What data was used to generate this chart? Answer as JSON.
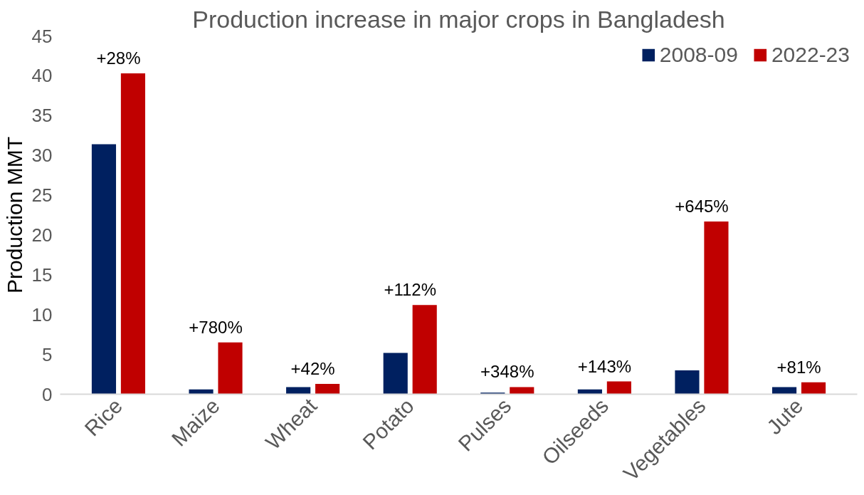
{
  "chart_data": {
    "type": "bar",
    "title": "Production increase in major crops in Bangladesh",
    "ylabel": "Production MMT",
    "categories": [
      "Rice",
      "Maize",
      "Wheat",
      "Potato",
      "Pulses",
      "Oilseeds",
      "Vegetables",
      "Jute"
    ],
    "series": [
      {
        "name": "2008-09",
        "color": "#002060",
        "values": [
          31.4,
          0.6,
          0.9,
          5.2,
          0.2,
          0.6,
          3.0,
          0.9
        ]
      },
      {
        "name": "2022-23",
        "color": "#c00000",
        "values": [
          40.3,
          6.5,
          1.3,
          11.2,
          0.9,
          1.6,
          21.7,
          1.5
        ]
      }
    ],
    "ylim": [
      0,
      45
    ],
    "yticks": [
      0,
      5,
      10,
      15,
      20,
      25,
      30,
      35,
      40,
      45
    ],
    "grid": false,
    "legend": "top right",
    "annotations": [
      "+28%",
      "+780%",
      "+42%",
      "+112%",
      "+348%",
      "+143%",
      "+645%",
      "+81%"
    ]
  }
}
